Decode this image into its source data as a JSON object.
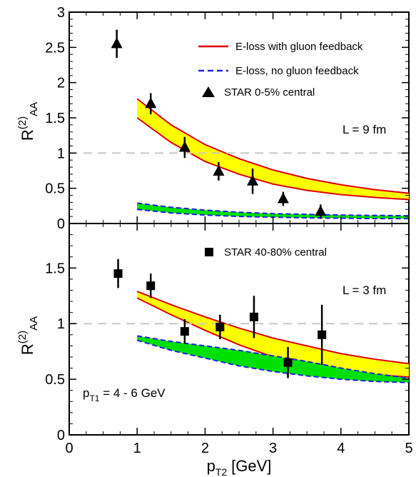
{
  "chart_data": {
    "type": "line",
    "xlabel_main": "p",
    "xlabel_sub": "T2",
    "xlabel_unit": "[GeV]",
    "xlim": [
      0,
      5
    ],
    "x_ticks": [
      "0",
      "1",
      "2",
      "3",
      "4",
      "5"
    ],
    "colors": {
      "gluon_feedback_band": "#ffff00",
      "gluon_feedback_edge": "#e00000",
      "no_gluon_band": "#00e000",
      "no_gluon_edge": "#2020e0",
      "reference_line": "#c8c8c8",
      "data_marker": "#000000"
    },
    "panels": [
      {
        "id": "top",
        "ylabel_main": "R",
        "ylabel_sup": "(2)",
        "ylabel_sub": "AA",
        "ylim": [
          0,
          3
        ],
        "y_ticks": [
          "0",
          "0.5",
          "1",
          "1.5",
          "2",
          "2.5",
          "3"
        ],
        "reference_y": 1,
        "annotation": "L = 9 fm",
        "legend": [
          {
            "label": "E-loss with gluon feedback",
            "style": "red-line"
          },
          {
            "label": "E-loss, no gluon feedback",
            "style": "blue-dashed"
          },
          {
            "label": "STAR 0-5% central",
            "style": "triangle"
          }
        ],
        "bands": [
          {
            "label": "E-loss with gluon feedback",
            "x": [
              1,
              1.5,
              2,
              2.5,
              3,
              3.5,
              4,
              4.5,
              5
            ],
            "upper": [
              1.77,
              1.4,
              1.12,
              0.92,
              0.76,
              0.64,
              0.55,
              0.48,
              0.43
            ],
            "lower": [
              1.5,
              1.15,
              0.88,
              0.7,
              0.56,
              0.47,
              0.41,
              0.37,
              0.34
            ]
          },
          {
            "label": "E-loss, no gluon feedback",
            "x": [
              1,
              1.5,
              2,
              2.5,
              3,
              3.5,
              4,
              4.5,
              5
            ],
            "upper": [
              0.29,
              0.23,
              0.19,
              0.16,
              0.14,
              0.13,
              0.12,
              0.115,
              0.11
            ],
            "lower": [
              0.2,
              0.15,
              0.12,
              0.1,
              0.09,
              0.08,
              0.075,
              0.07,
              0.07
            ]
          }
        ],
        "series": [
          {
            "name": "STAR 0-5% central",
            "marker": "triangle",
            "x": [
              0.7,
              1.2,
              1.7,
              2.2,
              2.7,
              3.15,
              3.7
            ],
            "y": [
              2.55,
              1.7,
              1.08,
              0.74,
              0.6,
              0.35,
              0.17
            ],
            "err": [
              0.2,
              0.15,
              0.15,
              0.13,
              0.18,
              0.1,
              0.1
            ]
          }
        ]
      },
      {
        "id": "bottom",
        "ylabel_main": "R",
        "ylabel_sup": "(2)",
        "ylabel_sub": "AA",
        "ylim": [
          0,
          1.9
        ],
        "y_ticks": [
          "0",
          "0.5",
          "1",
          "1.5"
        ],
        "reference_y": 1,
        "annotation": "L = 3 fm",
        "annotation2_main": "p",
        "annotation2_sub": "T1",
        "annotation2_rest": " = 4 - 6 GeV",
        "legend": [
          {
            "label": "STAR 40-80% central",
            "style": "square"
          }
        ],
        "bands": [
          {
            "label": "E-loss with gluon feedback",
            "x": [
              1,
              1.5,
              2,
              2.5,
              3,
              3.5,
              4,
              4.5,
              5
            ],
            "upper": [
              1.29,
              1.17,
              1.06,
              0.96,
              0.87,
              0.8,
              0.73,
              0.68,
              0.64
            ],
            "lower": [
              1.23,
              1.08,
              0.94,
              0.81,
              0.7,
              0.62,
              0.57,
              0.54,
              0.52
            ]
          },
          {
            "label": "E-loss, no gluon feedback",
            "x": [
              1,
              1.5,
              2,
              2.5,
              3,
              3.5,
              4,
              4.5,
              5
            ],
            "upper": [
              0.89,
              0.84,
              0.8,
              0.76,
              0.71,
              0.66,
              0.6,
              0.55,
              0.51
            ],
            "lower": [
              0.85,
              0.76,
              0.69,
              0.62,
              0.57,
              0.53,
              0.5,
              0.48,
              0.47
            ]
          }
        ],
        "series": [
          {
            "name": "STAR 40-80% central",
            "marker": "square",
            "x": [
              0.72,
              1.2,
              1.7,
              2.22,
              2.72,
              3.22,
              3.72
            ],
            "y": [
              1.45,
              1.34,
              0.93,
              0.97,
              1.06,
              0.65,
              0.9
            ],
            "err": [
              0.13,
              0.11,
              0.11,
              0.11,
              0.19,
              0.14,
              0.27
            ]
          }
        ]
      }
    ]
  }
}
